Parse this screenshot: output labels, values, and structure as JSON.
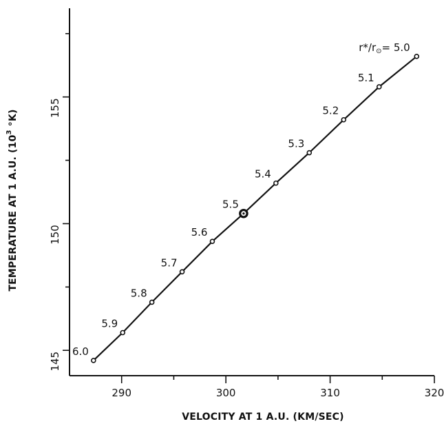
{
  "chart_data": {
    "type": "line",
    "xlabel": "VELOCITY AT 1 A.U. (KM/SEC)",
    "ylabel_prefix": "TEMPERATURE AT 1 A.U. (10",
    "ylabel_exponent": "3",
    "ylabel_suffix": " °K)",
    "xlim": [
      285,
      320
    ],
    "ylim": [
      144,
      158.5
    ],
    "x_ticks": [
      290,
      300,
      310,
      320
    ],
    "y_ticks": [
      145,
      150,
      155
    ],
    "label_parameter": "r*/r",
    "label_parameter_suffix": "= 5.0",
    "series": [
      {
        "points": [
          {
            "x": 318.3,
            "y": 156.6,
            "label": "5.0"
          },
          {
            "x": 314.7,
            "y": 155.4,
            "label": "5.1"
          },
          {
            "x": 311.3,
            "y": 154.1,
            "label": "5.2"
          },
          {
            "x": 308.0,
            "y": 152.8,
            "label": "5.3"
          },
          {
            "x": 304.8,
            "y": 151.6,
            "label": "5.4"
          },
          {
            "x": 301.7,
            "y": 150.4,
            "label": "5.5",
            "highlight": true
          },
          {
            "x": 298.7,
            "y": 149.3,
            "label": "5.6"
          },
          {
            "x": 295.8,
            "y": 148.1,
            "label": "5.7"
          },
          {
            "x": 292.9,
            "y": 146.9,
            "label": "5.8"
          },
          {
            "x": 290.1,
            "y": 145.7,
            "label": "5.9"
          },
          {
            "x": 287.3,
            "y": 144.6,
            "label": "6.0"
          }
        ]
      }
    ]
  }
}
